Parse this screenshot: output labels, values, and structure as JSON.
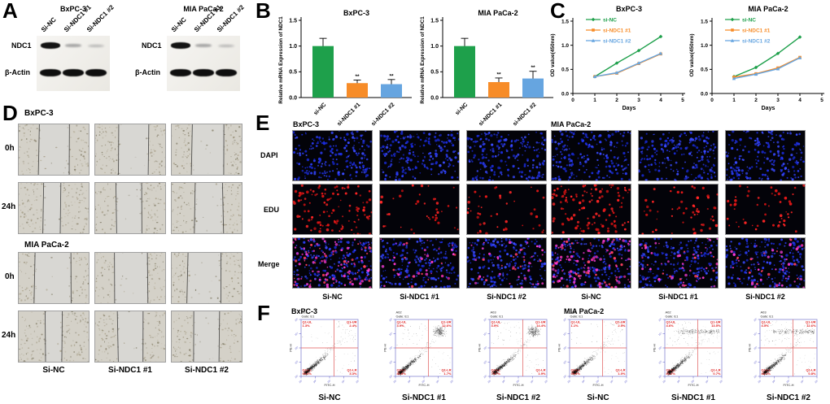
{
  "figure": {
    "panel_a": {
      "label": "A",
      "blots": [
        {
          "cell_line": "BxPC-3",
          "lanes": [
            "Si-NC",
            "Si-NDC1 #1",
            "Si-NDC1 #2"
          ],
          "row_labels": [
            "NDC1",
            "β-Actin"
          ]
        },
        {
          "cell_line": "MIA PaCa-2",
          "lanes": [
            "Si-NC",
            "Si-NDC1 #1",
            "Si-NDC1 #2"
          ],
          "row_labels": [
            "NDC1",
            "β-Actin"
          ]
        }
      ]
    },
    "panel_b": {
      "label": "B"
    },
    "panel_c": {
      "label": "C"
    },
    "panel_d": {
      "label": "D",
      "groups": [
        {
          "cell_line": "BxPC-3",
          "row_labels": [
            "0h",
            "24h"
          ]
        },
        {
          "cell_line": "MIA PaCa-2",
          "row_labels": [
            "0h",
            "24h"
          ]
        }
      ],
      "column_labels": [
        "Si-NC",
        "Si-NDC1 #1",
        "Si-NDC1 #2"
      ]
    },
    "panel_e": {
      "label": "E",
      "cell_line_labels": [
        "BxPC-3",
        "MIA PaCa-2"
      ],
      "row_labels": [
        "DAPI",
        "EDU",
        "Merge"
      ],
      "column_labels": [
        "Si-NC",
        "Si-NDC1 #1",
        "Si-NDC1 #2",
        "Si-NC",
        "Si-NDC1 #1",
        "Si-NDC1 #2"
      ]
    },
    "panel_f": {
      "label": "F",
      "groups": [
        {
          "cell_line": "BxPC-3",
          "plots": [
            {
              "well": "A01",
              "gate": "Gate: E1",
              "column_label": "Si-NC",
              "x_axis": "FITC-H",
              "y_axis": "PE-H",
              "quadrants": {
                "ul_name": "Q1-UL",
                "ul": "1.3%",
                "ur_name": "Q1-UR",
                "ur": "2.4%",
                "ll_name": "Q1-LL",
                "ll": "93.0%",
                "lr_name": "Q1-LR",
                "lr": "3.3%"
              }
            },
            {
              "well": "A02",
              "gate": "Gate: E1",
              "column_label": "Si-NDC1 #1",
              "x_axis": "FITC-H",
              "y_axis": "PE-H",
              "quadrants": {
                "ul_name": "Q1-UL",
                "ul": "3.9%",
                "ur_name": "Q1-UR",
                "ur": "12.6%",
                "ll_name": "Q1-LL",
                "ll": "81.8%",
                "lr_name": "Q1-LR",
                "lr": "1.7%"
              }
            },
            {
              "well": "A03",
              "gate": "Gate: E1",
              "column_label": "Si-NDC1 #2",
              "x_axis": "FITC-H",
              "y_axis": "PE-H",
              "quadrants": {
                "ul_name": "Q1-UL",
                "ul": "3.9%",
                "ur_name": "Q1-UR",
                "ur": "14.4%",
                "ll_name": "Q1-LL",
                "ll": "79.7%",
                "lr_name": "Q1-LR",
                "lr": "1.9%"
              }
            }
          ]
        },
        {
          "cell_line": "MIA PaCa-2",
          "plots": [
            {
              "well": "A01",
              "gate": "Gate: E1",
              "column_label": "Si-NC",
              "x_axis": "FITC-H",
              "y_axis": "PE-H",
              "quadrants": {
                "ul_name": "Q1-UL",
                "ul": "1.1%",
                "ur_name": "Q1-UR",
                "ur": "2.5%",
                "ll_name": "Q1-LL",
                "ll": "95.4%",
                "lr_name": "Q1-LR",
                "lr": "1.0%"
              }
            },
            {
              "well": "A02",
              "gate": "Gate: E1",
              "column_label": "Si-NDC1 #1",
              "x_axis": "FITC-H",
              "y_axis": "PE-H",
              "quadrants": {
                "ul_name": "Q1-UL",
                "ul": "4.6%",
                "ur_name": "Q1-UR",
                "ur": "13.5%",
                "ll_name": "Q1-LL",
                "ll": "81.2%",
                "lr_name": "Q1-LR",
                "lr": "0.7%"
              }
            },
            {
              "well": "A03",
              "gate": "Gate: E1",
              "column_label": "Si-NDC1 #2",
              "x_axis": "FITC-H",
              "y_axis": "PE-H",
              "quadrants": {
                "ul_name": "Q1-UL",
                "ul": "4.5%",
                "ur_name": "Q1-UR",
                "ur": "12.6%",
                "ll_name": "Q1-LL",
                "ll": "82.1%",
                "lr_name": "Q1-LR",
                "lr": "0.8%"
              }
            }
          ]
        }
      ]
    }
  },
  "chart_data": [
    {
      "type": "bar",
      "panel": "B",
      "title": "BxPC-3",
      "ylabel": "Relative  mRNA Expression of NDC1",
      "categories": [
        "si-NC",
        "si-NDC1 #1",
        "si-NDC1 #2"
      ],
      "values": [
        1.0,
        0.28,
        0.26
      ],
      "errors": [
        0.15,
        0.06,
        0.09
      ],
      "significance": [
        "",
        "**",
        "**"
      ],
      "colors": [
        "#1EA04B",
        "#F78C28",
        "#66A5E0"
      ],
      "ylim": [
        0,
        1.5
      ],
      "yticks": [
        0,
        0.5,
        1,
        1.5
      ],
      "grid": false
    },
    {
      "type": "bar",
      "panel": "B",
      "title": "MIA PaCa-2",
      "ylabel": "Relative  mRNA Expression of NDC1",
      "categories": [
        "si-NC",
        "si-NDC1 #1",
        "si-NDC1 #2"
      ],
      "values": [
        1.0,
        0.3,
        0.37
      ],
      "errors": [
        0.15,
        0.08,
        0.14
      ],
      "significance": [
        "",
        "**",
        "**"
      ],
      "colors": [
        "#1EA04B",
        "#F78C28",
        "#66A5E0"
      ],
      "ylim": [
        0,
        1.5
      ],
      "yticks": [
        0,
        0.5,
        1,
        1.5
      ],
      "grid": false
    },
    {
      "type": "line",
      "panel": "C",
      "title": "BxPC-3",
      "ylabel": "OD value(450nm)",
      "xlabel": "Days",
      "x": [
        1,
        2,
        3,
        4
      ],
      "series": [
        {
          "name": "si-NC",
          "color": "#1EA04B",
          "values": [
            0.35,
            0.63,
            0.89,
            1.18
          ]
        },
        {
          "name": "si-NDC1 #1",
          "color": "#F78C28",
          "values": [
            0.35,
            0.42,
            0.62,
            0.82
          ]
        },
        {
          "name": "si-NDC1 #2",
          "color": "#66A5E0",
          "values": [
            0.35,
            0.43,
            0.63,
            0.83
          ]
        }
      ],
      "xlim": [
        0,
        5
      ],
      "ylim": [
        0,
        1.5
      ],
      "xticks": [
        0,
        1,
        2,
        3,
        4,
        5
      ],
      "yticks": [
        0,
        0.5,
        1,
        1.5
      ],
      "legend_position": "top-left",
      "grid": false
    },
    {
      "type": "line",
      "panel": "C",
      "title": "MIA PaCa-2",
      "ylabel": "OD value(450nm)",
      "xlabel": "Days",
      "x": [
        1,
        2,
        3,
        4
      ],
      "series": [
        {
          "name": "si-NC",
          "color": "#1EA04B",
          "values": [
            0.35,
            0.54,
            0.83,
            1.17
          ]
        },
        {
          "name": "si-NDC1 #1",
          "color": "#F78C28",
          "values": [
            0.34,
            0.41,
            0.53,
            0.75
          ]
        },
        {
          "name": "si-NDC1 #2",
          "color": "#66A5E0",
          "values": [
            0.31,
            0.4,
            0.51,
            0.74
          ]
        }
      ],
      "xlim": [
        0,
        5
      ],
      "ylim": [
        0,
        1.5
      ],
      "xticks": [
        0,
        1,
        2,
        3,
        4,
        5
      ],
      "yticks": [
        0,
        0.5,
        1,
        1.5
      ],
      "legend_position": "top-left",
      "grid": false
    }
  ]
}
